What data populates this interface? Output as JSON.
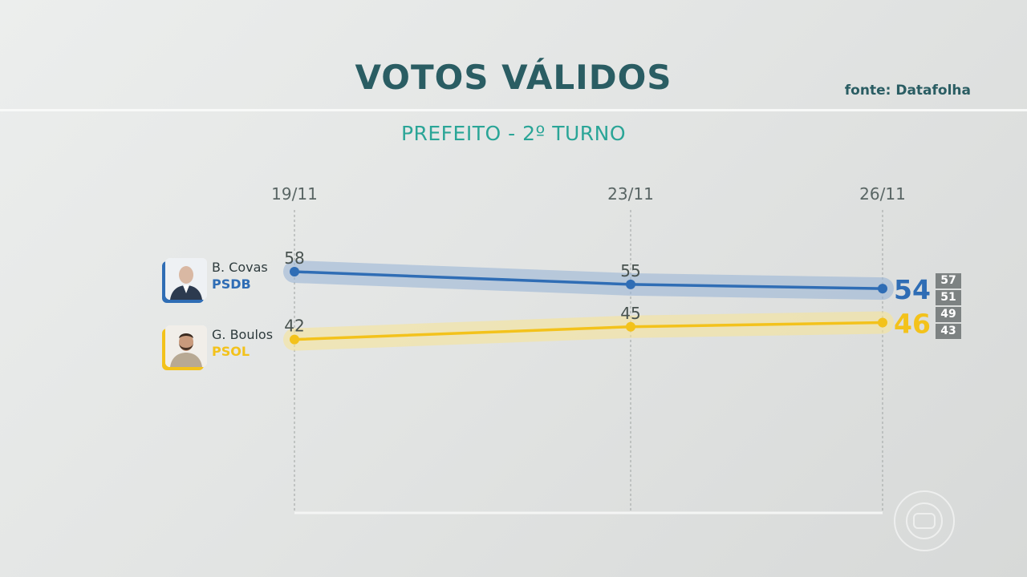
{
  "header": {
    "title": "VOTOS VÁLIDOS",
    "source": "fonte: Datafolha",
    "subtitle": "PREFEITO - 2º TURNO"
  },
  "chart_data": {
    "type": "line",
    "title": "VOTOS VÁLIDOS",
    "subtitle": "PREFEITO - 2º TURNO",
    "x": [
      "19/11",
      "23/11",
      "26/11"
    ],
    "ylim": [
      40,
      60
    ],
    "grid": "vertical dotted lines at each date",
    "series": [
      {
        "name": "B. Covas",
        "party": "PSDB",
        "color": "#2f6db5",
        "band_color": "#9bb6d6",
        "values": [
          58,
          55,
          54
        ],
        "margin_range": [
          57,
          51
        ]
      },
      {
        "name": "G. Boulos",
        "party": "PSOL",
        "color": "#f3c21b",
        "band_color": "#f6e49a",
        "values": [
          42,
          45,
          46
        ],
        "margin_range": [
          49,
          43
        ]
      }
    ]
  },
  "candidates": [
    {
      "name": "B. Covas",
      "party": "PSDB",
      "color": "#2f6db5",
      "photo": "candidate-photo"
    },
    {
      "name": "G. Boulos",
      "party": "PSOL",
      "color": "#f3c21b",
      "photo": "candidate-photo"
    }
  ],
  "logo": "globo-logo-icon"
}
